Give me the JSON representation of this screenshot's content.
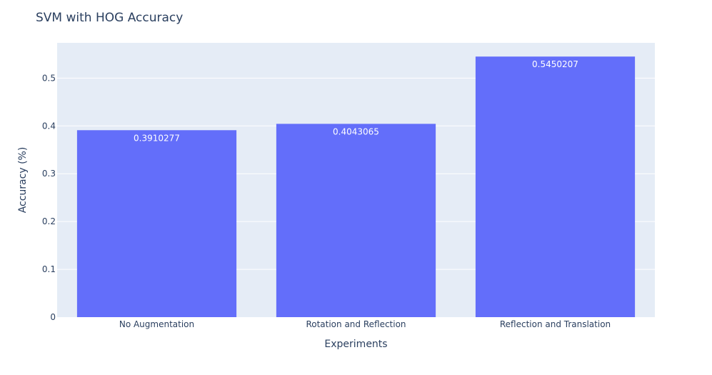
{
  "chart_data": {
    "type": "bar",
    "title": "SVM with HOG Accuracy",
    "xlabel": "Experiments",
    "ylabel": "Accuracy (%)",
    "categories": [
      "No Augmentation",
      "Rotation and Reflection",
      "Reflection and Translation"
    ],
    "values": [
      0.3910277,
      0.4043065,
      0.5450207
    ],
    "value_labels": [
      "0.3910277",
      "0.4043065",
      "0.5450207"
    ],
    "yticks": [
      0,
      0.1,
      0.2,
      0.3,
      0.4,
      0.5
    ],
    "ytick_labels": [
      "0",
      "0.1",
      "0.2",
      "0.3",
      "0.4",
      "0.5"
    ],
    "ylim": [
      0,
      0.5737
    ],
    "grid": true,
    "legend": false,
    "colors": {
      "bar": "#636efa",
      "plot_bg": "#e5ecf6",
      "grid": "#ffffff",
      "text": "#2a3f5f",
      "label": "#ffffff"
    }
  }
}
